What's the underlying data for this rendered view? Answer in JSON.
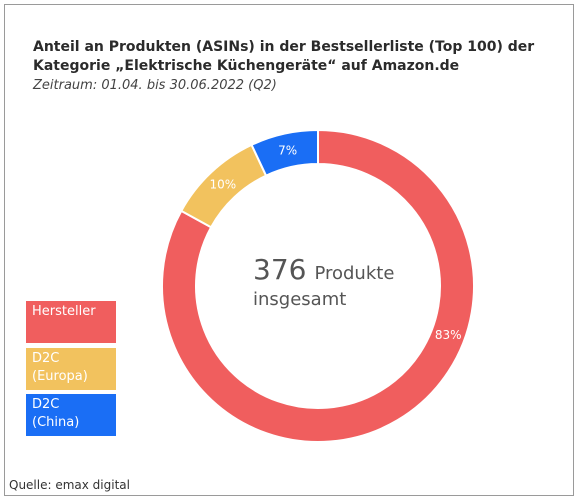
{
  "header": {
    "title": "Anteil an Produkten (ASINs) in der Bestsellerliste (Top 100) der Kategorie „Elektrische Küchengeräte“ auf Amazon.de",
    "subtitle": "Zeitraum: 01.04. bis 30.06.2022 (Q2)"
  },
  "center": {
    "number": "376",
    "unit": "Produkte",
    "line2": "insgesamt"
  },
  "legend": [
    {
      "line1": "Hersteller",
      "line2": "",
      "color": "#f05e5e"
    },
    {
      "line1": "D2C",
      "line2": "(Europa)",
      "color": "#f2c25e"
    },
    {
      "line1": "D2C",
      "line2": "(China)",
      "color": "#1a6ef5"
    }
  ],
  "source": "Quelle: emax digital",
  "chart_data": {
    "type": "pie",
    "style": "donut",
    "title": "Anteil an Produkten (ASINs) in der Bestsellerliste (Top 100) der Kategorie „Elektrische Küchengeräte“ auf Amazon.de",
    "categories": [
      "Hersteller",
      "D2C (Europa)",
      "D2C (China)"
    ],
    "values": [
      83,
      10,
      7
    ],
    "labels": [
      "83%",
      "10%",
      "7%"
    ],
    "colors": [
      "#f05e5e",
      "#f2c25e",
      "#1a6ef5"
    ],
    "legend_placement": "left"
  }
}
